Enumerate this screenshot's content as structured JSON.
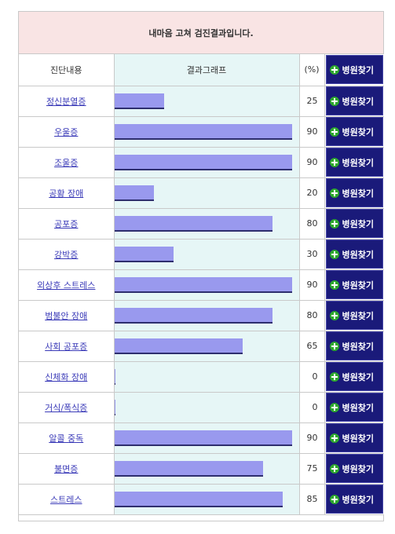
{
  "title": "내마음 고쳐 검진결과입니다.",
  "header": {
    "name": "진단내용",
    "graph": "결과그래프",
    "pct": "(%)",
    "button": "병원찾기"
  },
  "colors": {
    "bar": "#9999ee",
    "graph_bg": "#e6f6f6",
    "title_bg": "#f9e4e4",
    "button_bg": "#1a1a7a"
  },
  "rows": [
    {
      "name": "정신분열증",
      "value": 25,
      "button": "병원찾기"
    },
    {
      "name": "우울증",
      "value": 90,
      "button": "병원찾기"
    },
    {
      "name": "조울증",
      "value": 90,
      "button": "병원찾기"
    },
    {
      "name": "공황 장애",
      "value": 20,
      "button": "병원찾기"
    },
    {
      "name": "공포증",
      "value": 80,
      "button": "병원찾기"
    },
    {
      "name": "강박증",
      "value": 30,
      "button": "병원찾기"
    },
    {
      "name": "외상후 스트레스",
      "value": 90,
      "button": "병원찾기"
    },
    {
      "name": "범불안 장애",
      "value": 80,
      "button": "병원찾기"
    },
    {
      "name": "사회 공포증",
      "value": 65,
      "button": "병원찾기"
    },
    {
      "name": "신체화 장애",
      "value": 0,
      "button": "병원찾기"
    },
    {
      "name": "거식/폭식증",
      "value": 0,
      "button": "병원찾기"
    },
    {
      "name": "알콜 중독",
      "value": 90,
      "button": "병원찾기"
    },
    {
      "name": "불면증",
      "value": 75,
      "button": "병원찾기"
    },
    {
      "name": "스트레스",
      "value": 85,
      "button": "병원찾기"
    }
  ]
}
